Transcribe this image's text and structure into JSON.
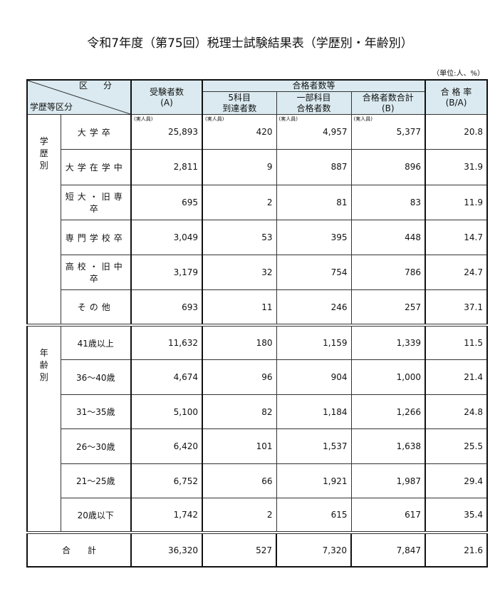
{
  "title": "令和7年度（第75回）税理士試験結果表（学歴別・年齢別）",
  "unit": "（単位:人、%）",
  "header": {
    "kubun": "区分",
    "row_header": "学歴等区分",
    "examinees": "受験者数",
    "examinees_sub": "(A)",
    "passers_group": "合格者数等",
    "five_subjects_1": "5科目",
    "five_subjects_2": "到達者数",
    "partial_1": "一部科目",
    "partial_2": "合格者数",
    "total_pass_1": "合格者数合計",
    "total_pass_2": "(B)",
    "rate": "合 格 率",
    "rate_sub": "(B/A)"
  },
  "actual_label": "(実人員)",
  "education": {
    "group_chars": [
      "学",
      "歴",
      "別"
    ],
    "rows": [
      {
        "label": "大学卒",
        "values": [
          "25,893",
          "420",
          "4,957",
          "5,377",
          "20.8"
        ]
      },
      {
        "label": "大学在学中",
        "values": [
          "2,811",
          "9",
          "887",
          "896",
          "31.9"
        ]
      },
      {
        "label": "短大・旧専卒",
        "values": [
          "695",
          "2",
          "81",
          "83",
          "11.9"
        ]
      },
      {
        "label": "専門学校卒",
        "values": [
          "3,049",
          "53",
          "395",
          "448",
          "14.7"
        ]
      },
      {
        "label": "高校・旧中卒",
        "values": [
          "3,179",
          "32",
          "754",
          "786",
          "24.7"
        ]
      },
      {
        "label": "その他",
        "values": [
          "693",
          "11",
          "246",
          "257",
          "37.1"
        ]
      }
    ]
  },
  "age": {
    "group_chars": [
      "年",
      "齢",
      "別"
    ],
    "rows": [
      {
        "label": "41歳以上",
        "values": [
          "11,632",
          "180",
          "1,159",
          "1,339",
          "11.5"
        ]
      },
      {
        "label": "36～40歳",
        "values": [
          "4,674",
          "96",
          "904",
          "1,000",
          "21.4"
        ]
      },
      {
        "label": "31～35歳",
        "values": [
          "5,100",
          "82",
          "1,184",
          "1,266",
          "24.8"
        ]
      },
      {
        "label": "26～30歳",
        "values": [
          "6,420",
          "101",
          "1,537",
          "1,638",
          "25.5"
        ]
      },
      {
        "label": "21～25歳",
        "values": [
          "6,752",
          "66",
          "1,921",
          "1,987",
          "29.4"
        ]
      },
      {
        "label": "20歳以下",
        "values": [
          "1,742",
          "2",
          "615",
          "617",
          "35.4"
        ]
      }
    ]
  },
  "total": {
    "label": "合　　計",
    "values": [
      "36,320",
      "527",
      "7,320",
      "7,847",
      "21.6"
    ]
  }
}
